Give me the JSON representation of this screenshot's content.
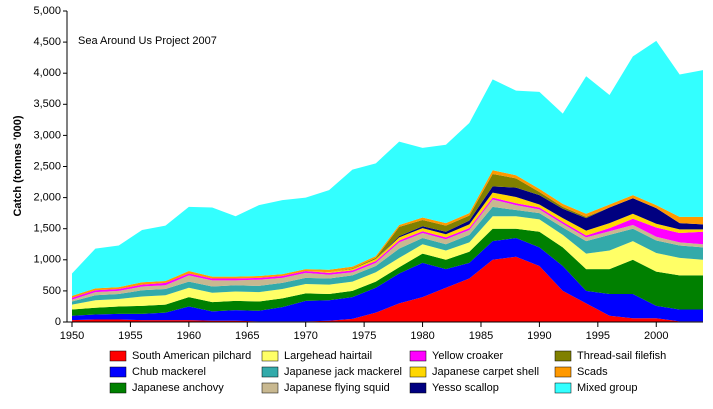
{
  "chart_data": {
    "type": "stacked-area",
    "annotation": "Sea Around Us Project 2007",
    "y_label": "Catch (tonnes '000)",
    "x": [
      1950,
      1952,
      1954,
      1956,
      1958,
      1960,
      1962,
      1964,
      1966,
      1968,
      1970,
      1972,
      1974,
      1976,
      1978,
      1980,
      1982,
      1984,
      1986,
      1988,
      1990,
      1992,
      1994,
      1996,
      1998,
      2000,
      2002,
      2004
    ],
    "xlim": [
      1950,
      2004
    ],
    "xticks": [
      1950,
      1955,
      1960,
      1965,
      1970,
      1975,
      1980,
      1985,
      1990,
      1995,
      2000
    ],
    "ylim": [
      0,
      5000
    ],
    "yticks": [
      0,
      500,
      {
        "value": 1000,
        "label": "1,000"
      },
      {
        "value": 1500,
        "label": "1,500"
      },
      {
        "value": 2000,
        "label": "2,000"
      },
      {
        "value": 2500,
        "label": "2,500"
      },
      {
        "value": 3000,
        "label": "3,000"
      },
      {
        "value": 3500,
        "label": "3,500"
      },
      {
        "value": 4000,
        "label": "4,000"
      },
      {
        "value": 4500,
        "label": "4,500"
      },
      {
        "value": 5000,
        "label": "5,000"
      }
    ],
    "series": [
      {
        "name": "South American pilchard",
        "color": "#ff0000",
        "values": [
          30,
          40,
          40,
          30,
          30,
          30,
          20,
          20,
          10,
          10,
          10,
          20,
          50,
          150,
          300,
          400,
          550,
          700,
          1000,
          1050,
          900,
          500,
          300,
          100,
          60,
          60,
          10,
          10
        ]
      },
      {
        "name": "Chub mackerel",
        "color": "#0000ff",
        "values": [
          70,
          80,
          90,
          100,
          120,
          220,
          150,
          170,
          170,
          230,
          330,
          330,
          350,
          400,
          480,
          550,
          300,
          250,
          300,
          300,
          300,
          400,
          200,
          350,
          390,
          200,
          190,
          190
        ]
      },
      {
        "name": "Japanese anchovy",
        "color": "#008000",
        "values": [
          100,
          110,
          120,
          130,
          130,
          150,
          150,
          150,
          150,
          140,
          120,
          100,
          100,
          100,
          100,
          150,
          150,
          180,
          200,
          150,
          250,
          300,
          350,
          400,
          550,
          550,
          550,
          550
        ]
      },
      {
        "name": "Largehead hairtail",
        "color": "#ffff66",
        "values": [
          80,
          120,
          120,
          150,
          150,
          150,
          150,
          150,
          150,
          150,
          150,
          150,
          150,
          150,
          150,
          150,
          150,
          150,
          200,
          200,
          200,
          200,
          250,
          300,
          300,
          300,
          280,
          250
        ]
      },
      {
        "name": "Japanese jack mackerel",
        "color": "#33aaaa",
        "values": [
          50,
          80,
          80,
          100,
          100,
          100,
          100,
          100,
          100,
          100,
          100,
          100,
          100,
          100,
          150,
          100,
          100,
          120,
          150,
          100,
          100,
          120,
          200,
          250,
          200,
          200,
          200,
          200
        ]
      },
      {
        "name": "Japanese flying squid",
        "color": "#c8b890",
        "values": [
          30,
          50,
          50,
          60,
          60,
          100,
          100,
          80,
          100,
          80,
          80,
          60,
          50,
          50,
          100,
          80,
          80,
          80,
          120,
          80,
          60,
          60,
          60,
          60,
          60,
          60,
          50,
          50
        ]
      },
      {
        "name": "Yellow croaker",
        "color": "#ff00ff",
        "values": [
          30,
          30,
          30,
          30,
          40,
          30,
          30,
          30,
          30,
          30,
          30,
          30,
          30,
          30,
          30,
          30,
          30,
          30,
          30,
          30,
          30,
          30,
          30,
          50,
          100,
          150,
          150,
          200
        ]
      },
      {
        "name": "Japanese carpet shell",
        "color": "#ffd700",
        "values": [
          0,
          0,
          0,
          0,
          0,
          0,
          0,
          0,
          0,
          0,
          0,
          10,
          20,
          30,
          50,
          50,
          50,
          60,
          80,
          100,
          50,
          60,
          80,
          80,
          80,
          60,
          60,
          40
        ]
      },
      {
        "name": "Yesso scallop",
        "color": "#000080",
        "values": [
          0,
          0,
          0,
          0,
          0,
          0,
          0,
          0,
          0,
          0,
          0,
          0,
          0,
          0,
          20,
          30,
          40,
          60,
          100,
          150,
          150,
          150,
          200,
          250,
          250,
          250,
          100,
          80
        ]
      },
      {
        "name": "Thread-sail filefish",
        "color": "#808000",
        "values": [
          0,
          0,
          0,
          0,
          0,
          0,
          0,
          0,
          0,
          0,
          0,
          0,
          10,
          20,
          150,
          100,
          100,
          80,
          200,
          150,
          50,
          30,
          20,
          0,
          0,
          0,
          0,
          0
        ]
      },
      {
        "name": "Scads",
        "color": "#ff9900",
        "values": [
          30,
          30,
          30,
          40,
          30,
          40,
          30,
          30,
          30,
          30,
          30,
          40,
          30,
          30,
          30,
          40,
          40,
          40,
          60,
          50,
          50,
          50,
          50,
          50,
          50,
          50,
          100,
          120
        ]
      },
      {
        "name": "Mixed group",
        "color": "#33ffff",
        "values": [
          360,
          640,
          670,
          840,
          890,
          1030,
          1110,
          970,
          1140,
          1190,
          1150,
          1280,
          1560,
          1490,
          1340,
          1120,
          1260,
          1450,
          1460,
          1360,
          1560,
          1450,
          2210,
          1760,
          2230,
          2640,
          2290,
          2360
        ]
      }
    ]
  }
}
